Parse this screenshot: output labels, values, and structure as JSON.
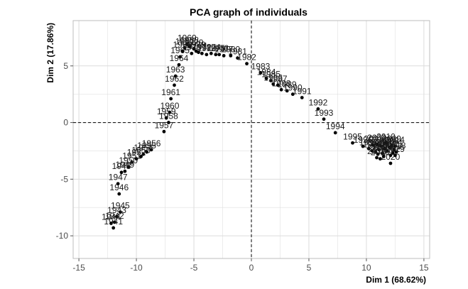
{
  "chart_data": {
    "type": "scatter",
    "title": "PCA graph of individuals",
    "xlabel": "Dim 1 (68.62%)",
    "ylabel": "Dim 2 (17.86%)",
    "xlim": [
      -15.5,
      15.5
    ],
    "ylim": [
      -12,
      9
    ],
    "xticks": [
      -15,
      -10,
      -5,
      0,
      5,
      10,
      15
    ],
    "yticks": [
      -10,
      -5,
      0,
      5
    ],
    "reference_lines": {
      "x": 0,
      "y": 0,
      "style": "dashed"
    },
    "grid": true,
    "point_color": "#000000",
    "points": [
      {
        "label": "1941",
        "x": -12.0,
        "y": -9.3
      },
      {
        "label": "1942",
        "x": -11.9,
        "y": -8.8
      },
      {
        "label": "1943",
        "x": -11.7,
        "y": -8.3
      },
      {
        "label": "1944",
        "x": -12.2,
        "y": -8.9
      },
      {
        "label": "1945",
        "x": -11.4,
        "y": -7.9
      },
      {
        "label": "1946",
        "x": -11.5,
        "y": -6.3
      },
      {
        "label": "1947",
        "x": -11.6,
        "y": -5.4
      },
      {
        "label": "1948",
        "x": -11.3,
        "y": -4.4
      },
      {
        "label": "1949",
        "x": -11.0,
        "y": -4.3
      },
      {
        "label": "1950",
        "x": -10.7,
        "y": -3.9
      },
      {
        "label": "1951",
        "x": -10.4,
        "y": -3.5
      },
      {
        "label": "1952",
        "x": -10.0,
        "y": -3.2
      },
      {
        "label": "1953",
        "x": -9.6,
        "y": -3.0
      },
      {
        "label": "1954",
        "x": -9.4,
        "y": -2.8
      },
      {
        "label": "1955",
        "x": -9.1,
        "y": -2.6
      },
      {
        "label": "1956",
        "x": -8.7,
        "y": -2.4
      },
      {
        "label": "1957",
        "x": -7.6,
        "y": -0.8
      },
      {
        "label": "1958",
        "x": -7.2,
        "y": 0.0
      },
      {
        "label": "1959",
        "x": -7.4,
        "y": 0.4
      },
      {
        "label": "1960",
        "x": -7.1,
        "y": 0.9
      },
      {
        "label": "1961",
        "x": -7.0,
        "y": 2.1
      },
      {
        "label": "1962",
        "x": -6.7,
        "y": 3.3
      },
      {
        "label": "1963",
        "x": -6.6,
        "y": 4.1
      },
      {
        "label": "1964",
        "x": -6.3,
        "y": 5.1
      },
      {
        "label": "1965",
        "x": -6.2,
        "y": 5.8
      },
      {
        "label": "1966",
        "x": -6.0,
        "y": 6.3
      },
      {
        "label": "1967",
        "x": -5.8,
        "y": 6.6
      },
      {
        "label": "1968",
        "x": -5.4,
        "y": 6.7
      },
      {
        "label": "1969",
        "x": -5.6,
        "y": 6.9
      },
      {
        "label": "1970",
        "x": -5.0,
        "y": 6.5
      },
      {
        "label": "1971",
        "x": -4.6,
        "y": 6.2
      },
      {
        "label": "1972",
        "x": -4.3,
        "y": 6.1
      },
      {
        "label": "1973",
        "x": -3.9,
        "y": 6.0
      },
      {
        "label": "1974",
        "x": -3.5,
        "y": 6.1
      },
      {
        "label": "1975",
        "x": -3.1,
        "y": 6.0
      },
      {
        "label": "1976",
        "x": -2.8,
        "y": 6.0
      },
      {
        "label": "1977",
        "x": -2.4,
        "y": 5.9
      },
      {
        "label": "1978",
        "x": -5.2,
        "y": 6.1
      },
      {
        "label": "1979",
        "x": -4.8,
        "y": 6.3
      },
      {
        "label": "1980",
        "x": -1.8,
        "y": 5.9
      },
      {
        "label": "1981",
        "x": -1.2,
        "y": 5.7
      },
      {
        "label": "1982",
        "x": -0.4,
        "y": 5.2
      },
      {
        "label": "1983",
        "x": 0.8,
        "y": 4.4
      },
      {
        "label": "1984",
        "x": 1.3,
        "y": 3.9
      },
      {
        "label": "1985",
        "x": 1.7,
        "y": 3.7
      },
      {
        "label": "1986",
        "x": 1.9,
        "y": 3.4
      },
      {
        "label": "1987",
        "x": 2.3,
        "y": 3.3
      },
      {
        "label": "1988",
        "x": 2.6,
        "y": 2.9
      },
      {
        "label": "1989",
        "x": 3.1,
        "y": 2.8
      },
      {
        "label": "1990",
        "x": 3.6,
        "y": 2.5
      },
      {
        "label": "1991",
        "x": 4.4,
        "y": 2.2
      },
      {
        "label": "1992",
        "x": 5.8,
        "y": 1.2
      },
      {
        "label": "1993",
        "x": 6.3,
        "y": 0.3
      },
      {
        "label": "1994",
        "x": 7.3,
        "y": -0.9
      },
      {
        "label": "1995",
        "x": 8.8,
        "y": -1.8
      },
      {
        "label": "1996",
        "x": 9.7,
        "y": -2.1
      },
      {
        "label": "1997",
        "x": 10.2,
        "y": -2.3
      },
      {
        "label": "1998",
        "x": 10.5,
        "y": -2.5
      },
      {
        "label": "1999",
        "x": 10.8,
        "y": -2.6
      },
      {
        "label": "2000",
        "x": 11.1,
        "y": -2.4
      },
      {
        "label": "2001",
        "x": 10.6,
        "y": -2.0
      },
      {
        "label": "2002",
        "x": 10.9,
        "y": -1.9
      },
      {
        "label": "2003",
        "x": 11.3,
        "y": -2.1
      },
      {
        "label": "2004",
        "x": 11.6,
        "y": -2.3
      },
      {
        "label": "2005",
        "x": 11.0,
        "y": -2.8
      },
      {
        "label": "2006",
        "x": 11.4,
        "y": -2.7
      },
      {
        "label": "2007",
        "x": 11.8,
        "y": -2.5
      },
      {
        "label": "2008",
        "x": 12.0,
        "y": -2.2
      },
      {
        "label": "2009",
        "x": 12.2,
        "y": -2.0
      },
      {
        "label": "2010",
        "x": 11.7,
        "y": -1.8
      },
      {
        "label": "2011",
        "x": 12.4,
        "y": -2.4
      },
      {
        "label": "2012",
        "x": 12.1,
        "y": -2.9
      },
      {
        "label": "2013",
        "x": 11.5,
        "y": -3.0
      },
      {
        "label": "2014",
        "x": 12.5,
        "y": -2.1
      },
      {
        "label": "2015",
        "x": 10.9,
        "y": -3.1
      },
      {
        "label": "2016",
        "x": 11.2,
        "y": -3.2
      },
      {
        "label": "2017",
        "x": 12.3,
        "y": -2.7
      },
      {
        "label": "2018",
        "x": 12.6,
        "y": -2.6
      },
      {
        "label": "2019",
        "x": 12.5,
        "y": -2.9
      },
      {
        "label": "2020",
        "x": 12.1,
        "y": -3.6
      }
    ]
  }
}
